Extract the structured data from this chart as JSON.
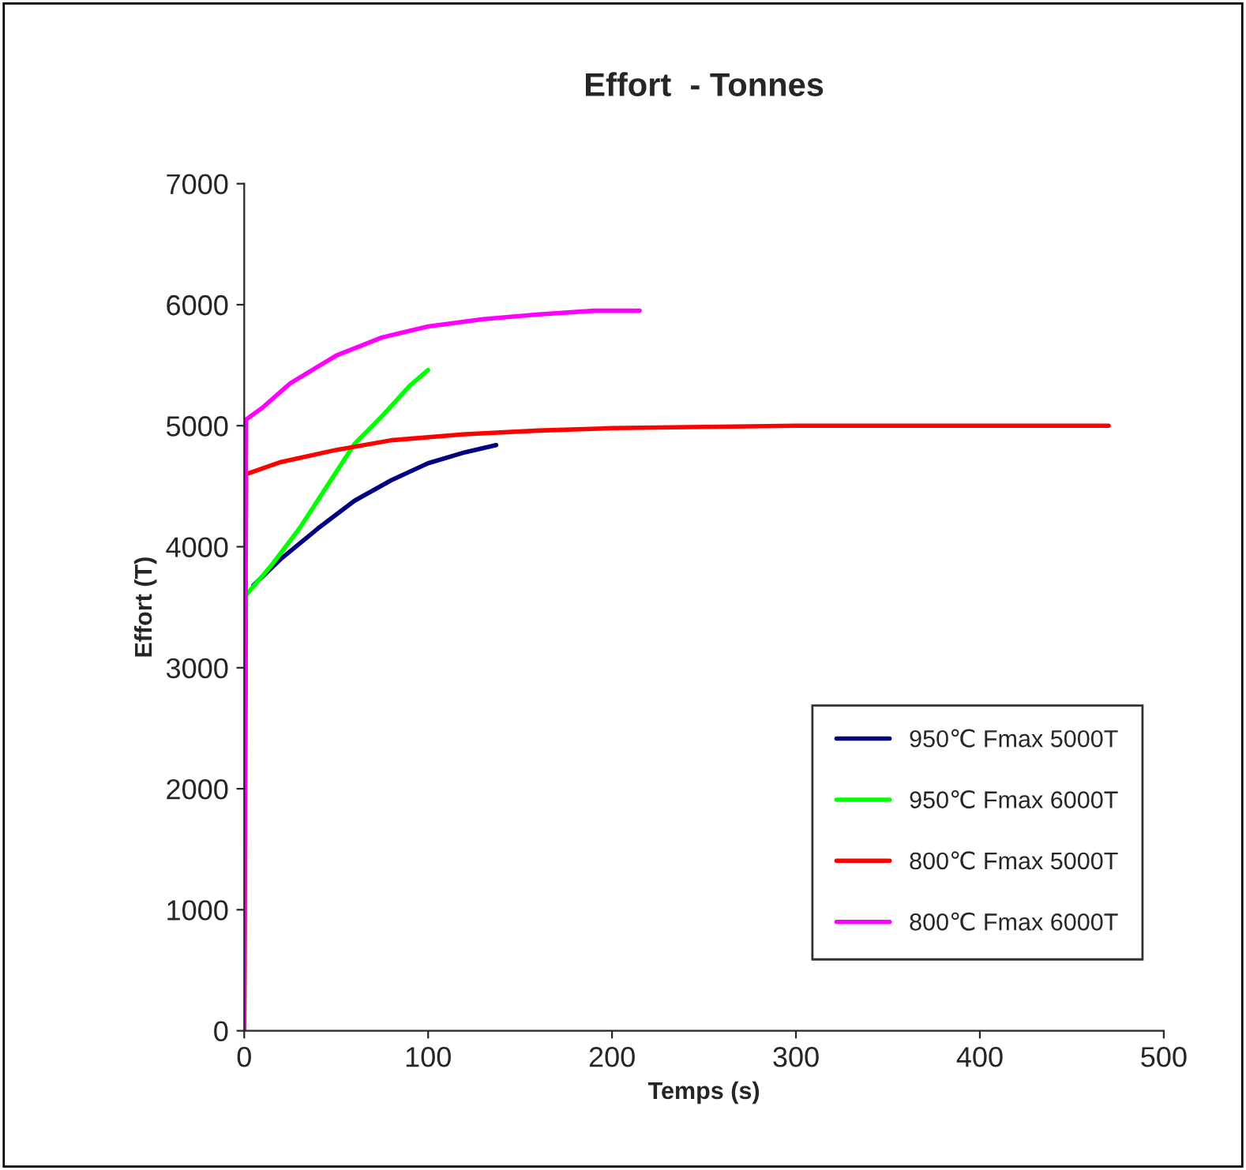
{
  "chart_data": {
    "type": "line",
    "title": "Effort  - Tonnes",
    "xlabel": "Temps (s)",
    "ylabel": "Effort (T)",
    "xlim": [
      0,
      500
    ],
    "xticks": [
      0,
      100,
      200,
      300,
      400,
      500
    ],
    "ylim": [
      0,
      7000
    ],
    "yticks": [
      0,
      1000,
      2000,
      3000,
      4000,
      5000,
      6000,
      7000
    ],
    "grid": false,
    "legend": "bottom right",
    "marker": "none",
    "line_style": "solid",
    "series": [
      {
        "name": "950℃ Fmax 5000T",
        "color": "#000080",
        "x": [
          5,
          20,
          40,
          60,
          80,
          100,
          120,
          137
        ],
        "values": [
          3680,
          3900,
          4150,
          4380,
          4550,
          4690,
          4780,
          4840
        ]
      },
      {
        "name": "950℃ Fmax 6000T",
        "color": "#00ff00",
        "x": [
          0,
          1,
          15,
          30,
          45,
          60,
          75,
          90,
          100
        ],
        "values": [
          0,
          3600,
          3850,
          4150,
          4500,
          4850,
          5080,
          5330,
          5460
        ]
      },
      {
        "name": "800℃ Fmax 5000T",
        "color": "#ff0000",
        "x": [
          0,
          1,
          20,
          50,
          80,
          120,
          160,
          200,
          300,
          470
        ],
        "values": [
          0,
          4600,
          4700,
          4800,
          4880,
          4930,
          4960,
          4980,
          5000,
          5000
        ]
      },
      {
        "name": "800℃ Fmax 6000T",
        "color": "#ff00ff",
        "x": [
          0,
          1,
          10,
          25,
          50,
          75,
          100,
          130,
          160,
          190,
          215
        ],
        "values": [
          0,
          5050,
          5150,
          5350,
          5580,
          5730,
          5820,
          5880,
          5920,
          5950,
          5950
        ]
      }
    ]
  }
}
